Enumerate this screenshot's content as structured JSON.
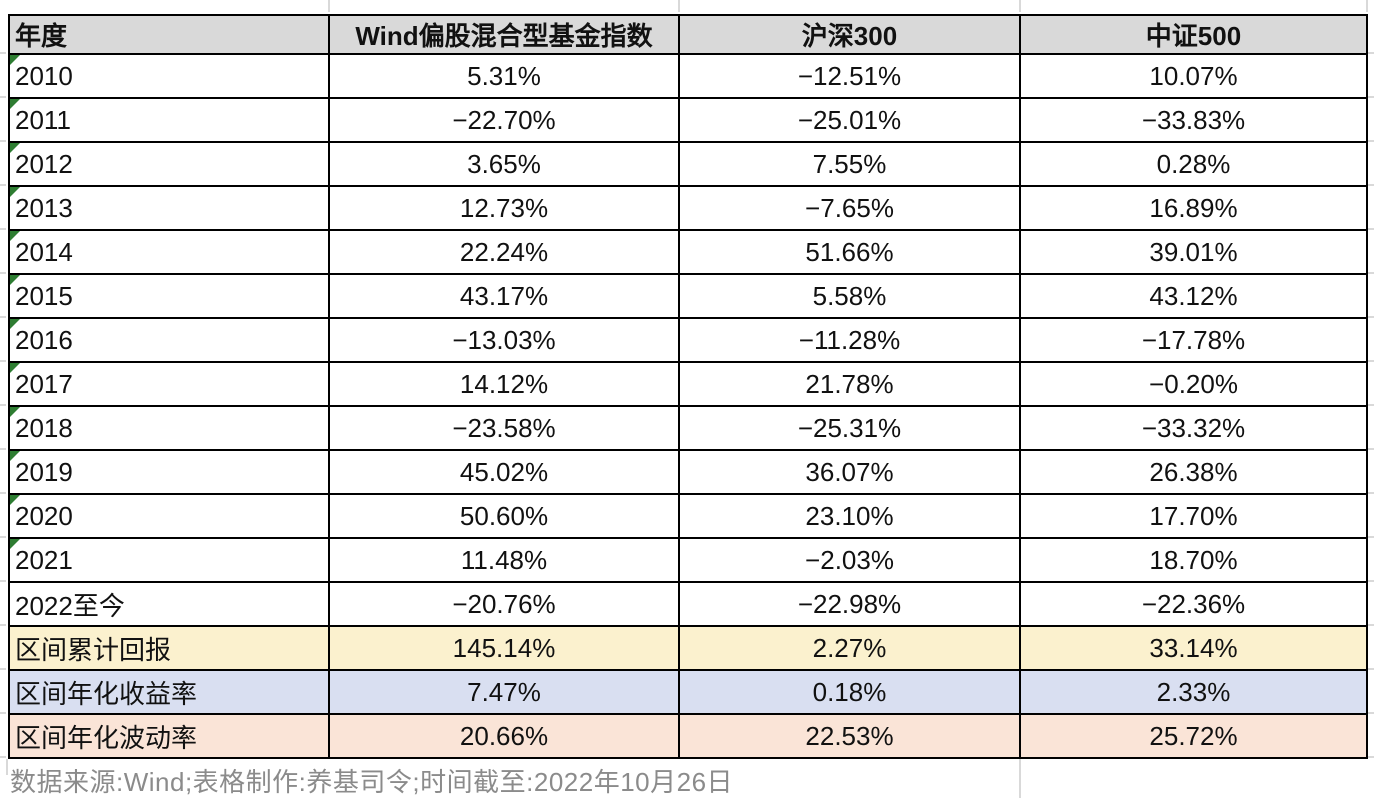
{
  "chart_data": {
    "type": "table",
    "title": "",
    "columns": [
      "年度",
      "Wind偏股混合型基金指数",
      "沪深300",
      "中证500"
    ],
    "rows": [
      {
        "year": "2010",
        "fund_index": "5.31%",
        "hs300": "−12.51%",
        "zz500": "10.07%",
        "note_marker": true
      },
      {
        "year": "2011",
        "fund_index": "−22.70%",
        "hs300": "−25.01%",
        "zz500": "−33.83%",
        "note_marker": true
      },
      {
        "year": "2012",
        "fund_index": "3.65%",
        "hs300": "7.55%",
        "zz500": "0.28%",
        "note_marker": true
      },
      {
        "year": "2013",
        "fund_index": "12.73%",
        "hs300": "−7.65%",
        "zz500": "16.89%",
        "note_marker": true
      },
      {
        "year": "2014",
        "fund_index": "22.24%",
        "hs300": "51.66%",
        "zz500": "39.01%",
        "note_marker": true
      },
      {
        "year": "2015",
        "fund_index": "43.17%",
        "hs300": "5.58%",
        "zz500": "43.12%",
        "note_marker": true
      },
      {
        "year": "2016",
        "fund_index": "−13.03%",
        "hs300": "−11.28%",
        "zz500": "−17.78%",
        "note_marker": true
      },
      {
        "year": "2017",
        "fund_index": "14.12%",
        "hs300": "21.78%",
        "zz500": "−0.20%",
        "note_marker": true
      },
      {
        "year": "2018",
        "fund_index": "−23.58%",
        "hs300": "−25.31%",
        "zz500": "−33.32%",
        "note_marker": true
      },
      {
        "year": "2019",
        "fund_index": "45.02%",
        "hs300": "36.07%",
        "zz500": "26.38%",
        "note_marker": true
      },
      {
        "year": "2020",
        "fund_index": "50.60%",
        "hs300": "23.10%",
        "zz500": "17.70%",
        "note_marker": true
      },
      {
        "year": "2021",
        "fund_index": "11.48%",
        "hs300": "−2.03%",
        "zz500": "18.70%",
        "note_marker": true
      },
      {
        "year": "2022至今",
        "fund_index": "−20.76%",
        "hs300": "−22.98%",
        "zz500": "−22.36%",
        "note_marker": false
      }
    ],
    "summary_rows": [
      {
        "label": "区间累计回报",
        "fund_index": "145.14%",
        "hs300": "2.27%",
        "zz500": "33.14%",
        "bg": "#fbf1ce"
      },
      {
        "label": "区间年化收益率",
        "fund_index": "7.47%",
        "hs300": "0.18%",
        "zz500": "2.33%",
        "bg": "#d9dff1"
      },
      {
        "label": "区间年化波动率",
        "fund_index": "20.66%",
        "hs300": "22.53%",
        "zz500": "25.72%",
        "bg": "#fae4d7"
      }
    ],
    "footnote": "数据来源:Wind;表格制作:养基司令;时间截至:2022年10月26日",
    "layout": {
      "legend": "none",
      "grid": "black cell borders, faint sheet gridlines outside table"
    }
  },
  "colors": {
    "header_bg": "#d9d9d9",
    "summary_cumulative_bg": "#fbf1ce",
    "summary_annualized_return_bg": "#d9dff1",
    "summary_annualized_vol_bg": "#fae4d7",
    "note_marker_green": "#2e7d32",
    "border": "#000000",
    "footer_text": "#8b8b8b",
    "sheet_gridline": "#d9d9d9"
  }
}
